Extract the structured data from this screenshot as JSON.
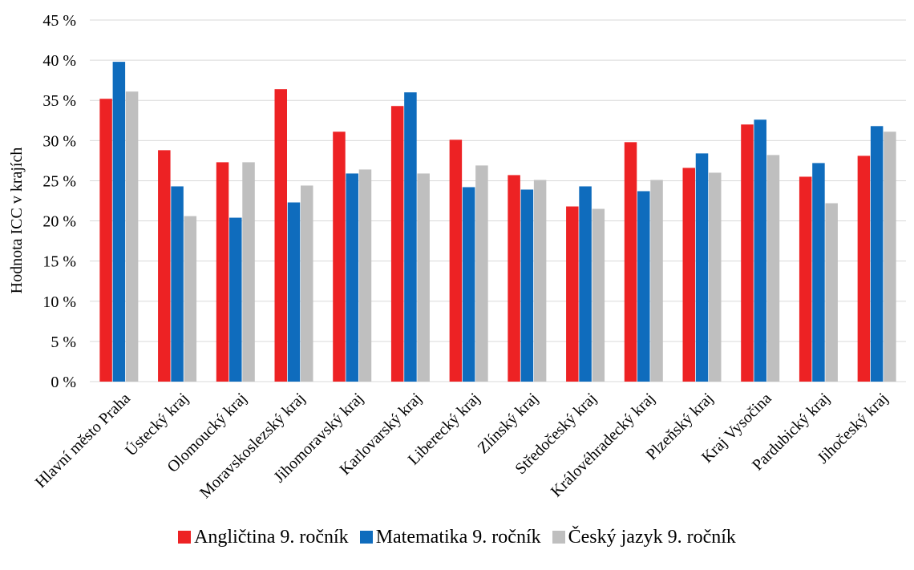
{
  "chart_data": {
    "type": "bar",
    "title": "",
    "xlabel": "",
    "ylabel": "Hodnota ICC v krajích",
    "ylim": [
      0,
      45
    ],
    "yticks": [
      0,
      5,
      10,
      15,
      20,
      25,
      30,
      35,
      40,
      45
    ],
    "ytick_labels": [
      "0 %",
      "5 %",
      "10 %",
      "15 %",
      "20 %",
      "25 %",
      "30 %",
      "35 %",
      "40 %",
      "45 %"
    ],
    "grid": true,
    "legend_position": "bottom",
    "categories": [
      "Hlavní město Praha",
      "Ústecký kraj",
      "Olomoucký kraj",
      "Moravskoslezský kraj",
      "Jihomoravský kraj",
      "Karlovarský kraj",
      "Liberecký kraj",
      "Zlínský kraj",
      "Středočeský kraj",
      "Královéhradecký kraj",
      "Plzeňský kraj",
      "Kraj Vysočina",
      "Pardubický kraj",
      "Jihočeský kraj"
    ],
    "series": [
      {
        "name": "Angličtina 9. ročník",
        "color": "#ed2224",
        "values": [
          35.2,
          28.8,
          27.3,
          36.4,
          31.1,
          34.3,
          30.1,
          25.7,
          21.8,
          29.8,
          26.6,
          32.0,
          25.5,
          28.1
        ]
      },
      {
        "name": "Matematika 9. ročník",
        "color": "#0f6cbd",
        "values": [
          39.8,
          24.3,
          20.4,
          22.3,
          25.9,
          36.0,
          24.2,
          23.9,
          24.3,
          23.7,
          28.4,
          32.6,
          27.2,
          31.8
        ]
      },
      {
        "name": "Český jazyk 9. ročník",
        "color": "#bfbfbf",
        "values": [
          36.1,
          20.6,
          27.3,
          24.4,
          26.4,
          25.9,
          26.9,
          25.1,
          21.5,
          25.1,
          26.0,
          28.2,
          22.2,
          31.1
        ]
      }
    ]
  }
}
